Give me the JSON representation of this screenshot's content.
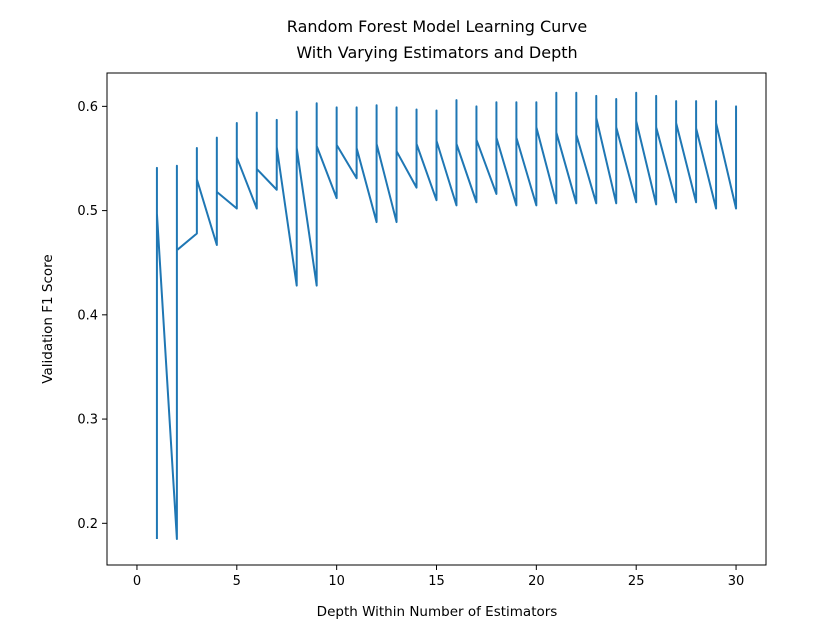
{
  "chart_data": {
    "type": "line",
    "title": [
      "Random Forest Model Learning Curve",
      "With Varying Estimators and Depth"
    ],
    "xlabel": "Depth Within Number of Estimators",
    "ylabel": "Validation F1 Score",
    "xlim": [
      -1.5,
      31.5
    ],
    "ylim": [
      0.16,
      0.632
    ],
    "xticks": [
      0,
      5,
      10,
      15,
      20,
      25,
      30
    ],
    "yticks": [
      0.2,
      0.3,
      0.4,
      0.5,
      0.6
    ],
    "xtick_labels": [
      "0",
      "5",
      "10",
      "15",
      "20",
      "25",
      "30"
    ],
    "ytick_labels": [
      "0.2",
      "0.3",
      "0.4",
      "0.5",
      "0.6"
    ],
    "grid": false,
    "series": [
      {
        "color": "#1f77b4",
        "points": [
          [
            1,
            0.185
          ],
          [
            1,
            0.541
          ],
          [
            1,
            0.497
          ],
          [
            2,
            0.185
          ],
          [
            2,
            0.543
          ],
          [
            2,
            0.462
          ],
          [
            3,
            0.478
          ],
          [
            3,
            0.56
          ],
          [
            3,
            0.53
          ],
          [
            4,
            0.467
          ],
          [
            4,
            0.57
          ],
          [
            4,
            0.518
          ],
          [
            5,
            0.502
          ],
          [
            5,
            0.584
          ],
          [
            5,
            0.551
          ],
          [
            6,
            0.502
          ],
          [
            6,
            0.594
          ],
          [
            6,
            0.54
          ],
          [
            7,
            0.52
          ],
          [
            7,
            0.587
          ],
          [
            7,
            0.561
          ],
          [
            8,
            0.428
          ],
          [
            8,
            0.595
          ],
          [
            8,
            0.56
          ],
          [
            9,
            0.428
          ],
          [
            9,
            0.603
          ],
          [
            9,
            0.562
          ],
          [
            10,
            0.512
          ],
          [
            10,
            0.599
          ],
          [
            10,
            0.563
          ],
          [
            11,
            0.531
          ],
          [
            11,
            0.599
          ],
          [
            11,
            0.56
          ],
          [
            12,
            0.489
          ],
          [
            12,
            0.601
          ],
          [
            12,
            0.564
          ],
          [
            13,
            0.489
          ],
          [
            13,
            0.599
          ],
          [
            13,
            0.557
          ],
          [
            14,
            0.522
          ],
          [
            14,
            0.597
          ],
          [
            14,
            0.564
          ],
          [
            15,
            0.51
          ],
          [
            15,
            0.596
          ],
          [
            15,
            0.567
          ],
          [
            16,
            0.505
          ],
          [
            16,
            0.606
          ],
          [
            16,
            0.564
          ],
          [
            17,
            0.508
          ],
          [
            17,
            0.6
          ],
          [
            17,
            0.568
          ],
          [
            18,
            0.516
          ],
          [
            18,
            0.604
          ],
          [
            18,
            0.57
          ],
          [
            19,
            0.505
          ],
          [
            19,
            0.604
          ],
          [
            19,
            0.57
          ],
          [
            20,
            0.505
          ],
          [
            20,
            0.604
          ],
          [
            20,
            0.58
          ],
          [
            21,
            0.507
          ],
          [
            21,
            0.613
          ],
          [
            21,
            0.575
          ],
          [
            22,
            0.507
          ],
          [
            22,
            0.613
          ],
          [
            22,
            0.573
          ],
          [
            23,
            0.507
          ],
          [
            23,
            0.61
          ],
          [
            23,
            0.589
          ],
          [
            24,
            0.507
          ],
          [
            24,
            0.607
          ],
          [
            24,
            0.58
          ],
          [
            25,
            0.508
          ],
          [
            25,
            0.613
          ],
          [
            25,
            0.586
          ],
          [
            26,
            0.506
          ],
          [
            26,
            0.61
          ],
          [
            26,
            0.58
          ],
          [
            27,
            0.508
          ],
          [
            27,
            0.605
          ],
          [
            27,
            0.584
          ],
          [
            28,
            0.508
          ],
          [
            28,
            0.605
          ],
          [
            28,
            0.579
          ],
          [
            29,
            0.502
          ],
          [
            29,
            0.605
          ],
          [
            29,
            0.584
          ],
          [
            30,
            0.502
          ],
          [
            30,
            0.6
          ],
          [
            30,
            0.57
          ]
        ]
      }
    ]
  }
}
